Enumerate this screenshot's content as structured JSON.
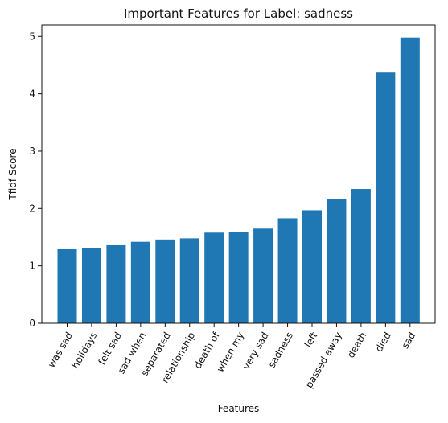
{
  "chart_data": {
    "type": "bar",
    "title": "Important Features for Label: sadness",
    "xlabel": "Features",
    "ylabel": "Tfidf Score",
    "categories": [
      "was sad",
      "holidays",
      "felt sad",
      "sad when",
      "separated",
      "relationship",
      "death of",
      "when my",
      "very sad",
      "sadness",
      "left",
      "passed away",
      "death",
      "died",
      "sad"
    ],
    "values": [
      1.29,
      1.31,
      1.36,
      1.42,
      1.46,
      1.48,
      1.58,
      1.59,
      1.65,
      1.83,
      1.97,
      2.16,
      2.34,
      4.37,
      4.98
    ],
    "ylim": [
      0,
      5.2
    ],
    "yticks": [
      0,
      1,
      2,
      3,
      4,
      5
    ],
    "grid": false,
    "bar_color": "#1f77b4"
  }
}
